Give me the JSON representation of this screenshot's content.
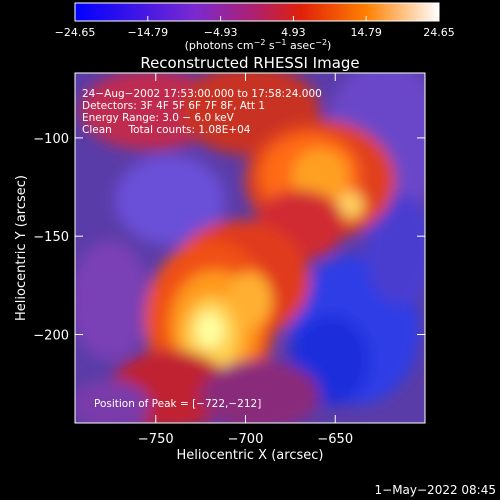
{
  "chart_data": {
    "type": "heatmap",
    "title": "Reconstructed RHESSI Image",
    "colorbar": {
      "ticks": [
        "−24.65",
        "−14.79",
        "−4.93",
        "4.93",
        "14.79",
        "24.65"
      ],
      "range": [
        -24.65,
        24.65
      ],
      "units_prefix": "(photons cm",
      "units_sup1": "−2",
      "units_mid": " s",
      "units_sup2": "−1",
      "units_mid2": " asec",
      "units_sup3": "−2",
      "units_suffix": ")"
    },
    "xlabel": "Heliocentric X (arcsec)",
    "ylabel": "Heliocentric Y (arcsec)",
    "xlim": [
      -795,
      -600
    ],
    "ylim": [
      -245,
      -67
    ],
    "xticks": [
      -750,
      -700,
      -650
    ],
    "xtick_labels": [
      "−750",
      "−700",
      "−650"
    ],
    "yticks": [
      -100,
      -150,
      -200
    ],
    "ytick_labels": [
      "−100",
      "−150",
      "−200"
    ],
    "annotations": [
      "24−Aug−2002 17:53:00.000 to 17:58:24.000",
      "Detectors: 3F 4F 5F 6F 7F 8F, Att 1",
      "Energy Range: 3.0 − 6.0 keV",
      "Clean     Total counts: 1.08E+04"
    ],
    "peak_text": "Position of Peak = [−722,−212]",
    "peak": [
      -722,
      -212
    ],
    "colors": {
      "bg": "#000000",
      "low": "#1a2ed9",
      "mid_low": "#6a3fb5",
      "mid": "#8a2a8a",
      "warm": "#e03a1a",
      "hot": "#ff9a1a",
      "peak": "#ffffa0"
    }
  },
  "footer": {
    "date": "1−May−2022 08:45"
  }
}
